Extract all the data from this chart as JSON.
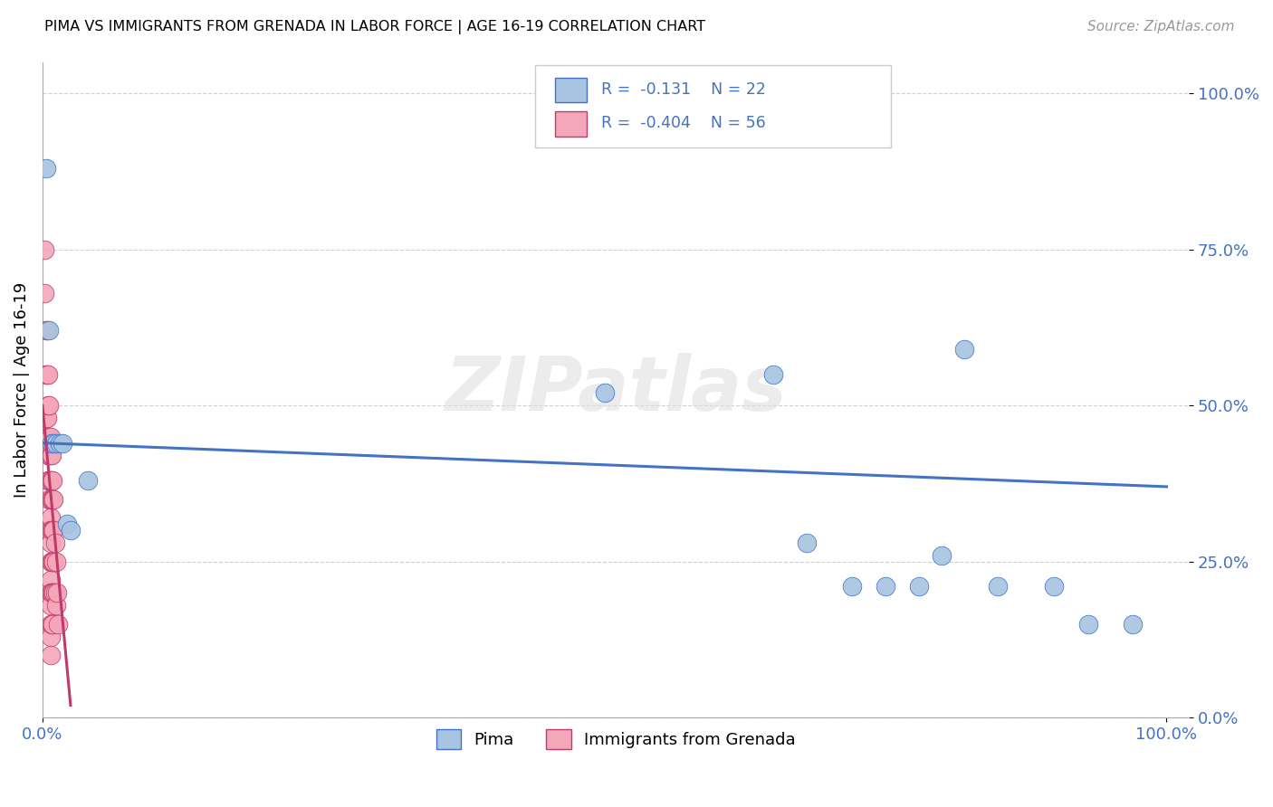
{
  "title": "PIMA VS IMMIGRANTS FROM GRENADA IN LABOR FORCE | AGE 16-19 CORRELATION CHART",
  "source": "Source: ZipAtlas.com",
  "ylabel": "In Labor Force | Age 16-19",
  "pima_color": "#a8c4e0",
  "grenada_color": "#f4a7b9",
  "pima_line_color": "#4472c4",
  "grenada_line_color": "#c0396b",
  "pima_R": "-0.131",
  "pima_N": "22",
  "grenada_R": "-0.404",
  "grenada_N": "56",
  "legend_label_pima": "Pima",
  "legend_label_grenada": "Immigrants from Grenada",
  "pima_scatter_x": [
    0.003,
    0.006,
    0.008,
    0.01,
    0.012,
    0.015,
    0.018,
    0.022,
    0.025,
    0.04,
    0.5,
    0.65,
    0.68,
    0.72,
    0.75,
    0.78,
    0.8,
    0.82,
    0.85,
    0.9,
    0.93,
    0.97
  ],
  "pima_scatter_y": [
    0.88,
    0.62,
    0.44,
    0.44,
    0.44,
    0.44,
    0.44,
    0.31,
    0.3,
    0.38,
    0.52,
    0.55,
    0.28,
    0.21,
    0.21,
    0.21,
    0.26,
    0.59,
    0.21,
    0.21,
    0.15,
    0.15
  ],
  "grenada_scatter_x": [
    0.002,
    0.002,
    0.003,
    0.003,
    0.003,
    0.004,
    0.004,
    0.004,
    0.005,
    0.005,
    0.005,
    0.005,
    0.005,
    0.006,
    0.006,
    0.006,
    0.006,
    0.006,
    0.006,
    0.007,
    0.007,
    0.007,
    0.007,
    0.007,
    0.007,
    0.007,
    0.007,
    0.007,
    0.007,
    0.007,
    0.007,
    0.007,
    0.007,
    0.008,
    0.008,
    0.008,
    0.008,
    0.008,
    0.008,
    0.008,
    0.009,
    0.009,
    0.009,
    0.009,
    0.009,
    0.009,
    0.01,
    0.01,
    0.01,
    0.01,
    0.011,
    0.011,
    0.012,
    0.012,
    0.013,
    0.014
  ],
  "grenada_scatter_y": [
    0.75,
    0.68,
    0.62,
    0.55,
    0.48,
    0.62,
    0.55,
    0.48,
    0.55,
    0.5,
    0.45,
    0.42,
    0.38,
    0.5,
    0.45,
    0.42,
    0.38,
    0.35,
    0.3,
    0.45,
    0.42,
    0.38,
    0.35,
    0.32,
    0.3,
    0.28,
    0.25,
    0.22,
    0.2,
    0.18,
    0.15,
    0.13,
    0.1,
    0.42,
    0.38,
    0.35,
    0.3,
    0.25,
    0.2,
    0.15,
    0.38,
    0.35,
    0.3,
    0.25,
    0.2,
    0.15,
    0.35,
    0.3,
    0.25,
    0.2,
    0.28,
    0.2,
    0.25,
    0.18,
    0.2,
    0.15
  ],
  "pima_trendline_x": [
    0.0,
    1.0
  ],
  "pima_trendline_y": [
    0.44,
    0.37
  ],
  "grenada_trendline_x": [
    0.0,
    0.025
  ],
  "grenada_trendline_y": [
    0.5,
    0.02
  ],
  "xlim": [
    0.0,
    1.02
  ],
  "ylim": [
    0.0,
    1.05
  ],
  "xticks": [
    0.0,
    1.0
  ],
  "xticklabels": [
    "0.0%",
    "100.0%"
  ],
  "yticks": [
    0.0,
    0.25,
    0.5,
    0.75,
    1.0
  ],
  "yticklabels": [
    "0.0%",
    "25.0%",
    "50.0%",
    "75.0%",
    "100.0%"
  ],
  "grid_color": "#d0d0d0",
  "watermark": "ZIPatlas",
  "watermark_color": "#e0e0e0"
}
